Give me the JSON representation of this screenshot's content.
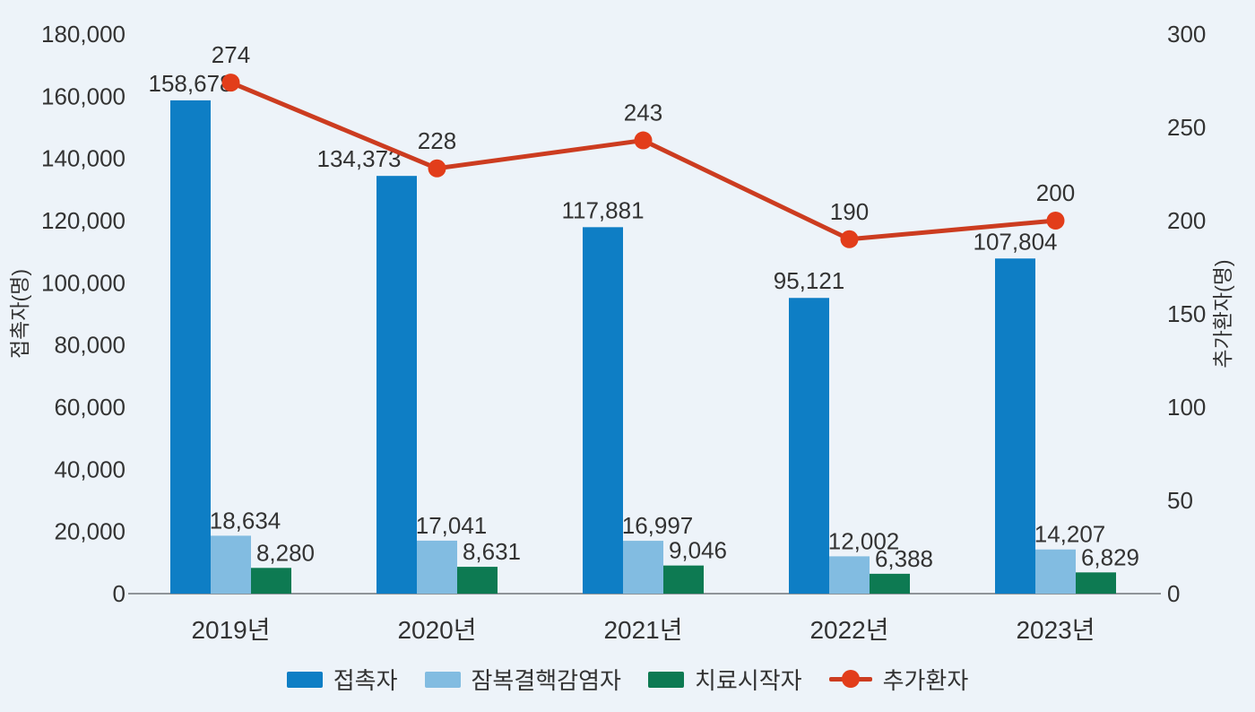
{
  "chart_data": {
    "type": "combo_bar_line",
    "background_color": "#edf3f9",
    "text_color": "#333333",
    "axis_line_color": "#8f9499",
    "grid": "off",
    "legend_position": "bottom-center",
    "categories": [
      "2019년",
      "2020년",
      "2021년",
      "2022년",
      "2023년"
    ],
    "series": [
      {
        "name": "접촉자",
        "type": "bar",
        "axis": "left",
        "color": "#0e7ec5",
        "values": [
          158678,
          134373,
          117881,
          95121,
          107804
        ],
        "labels": [
          "158,678",
          "134,373",
          "117,881",
          "95,121",
          "107,804"
        ]
      },
      {
        "name": "잠복결핵감염자",
        "type": "bar",
        "axis": "left",
        "color": "#82bce1",
        "values": [
          18634,
          17041,
          16997,
          12002,
          14207
        ],
        "labels": [
          "18,634",
          "17,041",
          "16,997",
          "12,002",
          "14,207"
        ]
      },
      {
        "name": "치료시작자",
        "type": "bar",
        "axis": "left",
        "color": "#0d7a52",
        "values": [
          8280,
          8631,
          9046,
          6388,
          6829
        ],
        "labels": [
          "8,280",
          "8,631",
          "9,046",
          "6,388",
          "6,829"
        ]
      },
      {
        "name": "추가환자",
        "type": "line",
        "axis": "right",
        "color": "#cc3c20",
        "dot_color": "#e23d1a",
        "values": [
          274,
          228,
          243,
          190,
          200
        ],
        "labels": [
          "274",
          "228",
          "243",
          "190",
          "200"
        ]
      }
    ],
    "left_axis": {
      "label": "접촉자(명)",
      "min": 0,
      "max": 180000,
      "step": 20000,
      "tick_labels": [
        "0",
        "20,000",
        "40,000",
        "60,000",
        "80,000",
        "100,000",
        "120,000",
        "140,000",
        "160,000",
        "180,000"
      ]
    },
    "right_axis": {
      "label": "추가환자(명)",
      "min": 0,
      "max": 300,
      "step": 50,
      "tick_labels": [
        "0",
        "50",
        "100",
        "150",
        "200",
        "250",
        "300"
      ]
    }
  }
}
